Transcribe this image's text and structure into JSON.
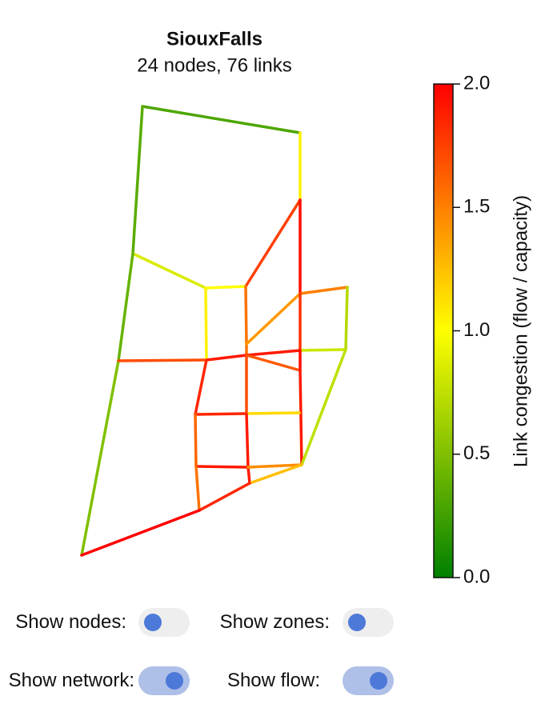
{
  "chart_data": {
    "type": "network",
    "title": "SiouxFalls",
    "subtitle": "24 nodes, 76 links",
    "xlim": [
      80,
      460
    ],
    "ylim": [
      720,
      110
    ],
    "node_x": [
      178,
      375,
      166,
      257,
      307,
      375,
      434,
      375,
      375,
      432,
      148,
      258,
      308,
      375,
      244,
      308,
      374,
      245,
      310,
      377,
      312,
      249,
      102,
      308
    ],
    "node_y": [
      133,
      166,
      317,
      360,
      358,
      250,
      359,
      367,
      438,
      437,
      451,
      450,
      444,
      463,
      518,
      517,
      516,
      583,
      584,
      581,
      604,
      638,
      694,
      430
    ],
    "links": [
      {
        "from": 0,
        "to": 1,
        "value": 0.3
      },
      {
        "from": 1,
        "to": 5,
        "value": 1.05
      },
      {
        "from": 0,
        "to": 2,
        "value": 0.35
      },
      {
        "from": 2,
        "to": 3,
        "value": 0.85
      },
      {
        "from": 3,
        "to": 4,
        "value": 1.0
      },
      {
        "from": 5,
        "to": 4,
        "value": 1.75
      },
      {
        "from": 5,
        "to": 7,
        "value": 1.95
      },
      {
        "from": 4,
        "to": 23,
        "value": 1.55
      },
      {
        "from": 23,
        "to": 12,
        "value": 1.55
      },
      {
        "from": 23,
        "to": 7,
        "value": 1.4
      },
      {
        "from": 7,
        "to": 6,
        "value": 1.5
      },
      {
        "from": 6,
        "to": 9,
        "value": 0.7
      },
      {
        "from": 7,
        "to": 8,
        "value": 1.8
      },
      {
        "from": 8,
        "to": 9,
        "value": 0.8
      },
      {
        "from": 12,
        "to": 8,
        "value": 1.9
      },
      {
        "from": 12,
        "to": 13,
        "value": 1.65
      },
      {
        "from": 8,
        "to": 13,
        "value": 1.95
      },
      {
        "from": 13,
        "to": 19,
        "value": 1.9
      },
      {
        "from": 9,
        "to": 19,
        "value": 0.75
      },
      {
        "from": 2,
        "to": 10,
        "value": 0.4
      },
      {
        "from": 10,
        "to": 22,
        "value": 0.5
      },
      {
        "from": 10,
        "to": 11,
        "value": 1.7
      },
      {
        "from": 3,
        "to": 11,
        "value": 1.05
      },
      {
        "from": 11,
        "to": 12,
        "value": 1.9
      },
      {
        "from": 11,
        "to": 14,
        "value": 1.85
      },
      {
        "from": 14,
        "to": 15,
        "value": 1.85
      },
      {
        "from": 12,
        "to": 15,
        "value": 1.7
      },
      {
        "from": 15,
        "to": 16,
        "value": 1.15
      },
      {
        "from": 14,
        "to": 17,
        "value": 1.6
      },
      {
        "from": 15,
        "to": 18,
        "value": 1.9
      },
      {
        "from": 18,
        "to": 20,
        "value": 1.9
      },
      {
        "from": 17,
        "to": 18,
        "value": 1.9
      },
      {
        "from": 18,
        "to": 19,
        "value": 1.45
      },
      {
        "from": 17,
        "to": 21,
        "value": 1.55
      },
      {
        "from": 20,
        "to": 19,
        "value": 1.25
      },
      {
        "from": 21,
        "to": 20,
        "value": 1.85
      },
      {
        "from": 22,
        "to": 21,
        "value": 2.0
      }
    ],
    "colorscale": [
      "#008000",
      "#ffff00",
      "#ff0000"
    ],
    "colorbar_label": "Link congestion (flow / capacity)",
    "clim": [
      0,
      2
    ],
    "cticks": [
      {
        "value": 0,
        "label": "0.0"
      },
      {
        "value": 0.5,
        "label": "0.5"
      },
      {
        "value": 1,
        "label": "1.0"
      },
      {
        "value": 1.5,
        "label": "1.5"
      },
      {
        "value": 2,
        "label": "2.0"
      }
    ]
  },
  "controls": [
    {
      "label": "Show nodes:",
      "on": false
    },
    {
      "label": "Show zones:",
      "on": false
    },
    {
      "label": "Show network:",
      "on": true
    },
    {
      "label": "Show flow:",
      "on": true
    }
  ]
}
